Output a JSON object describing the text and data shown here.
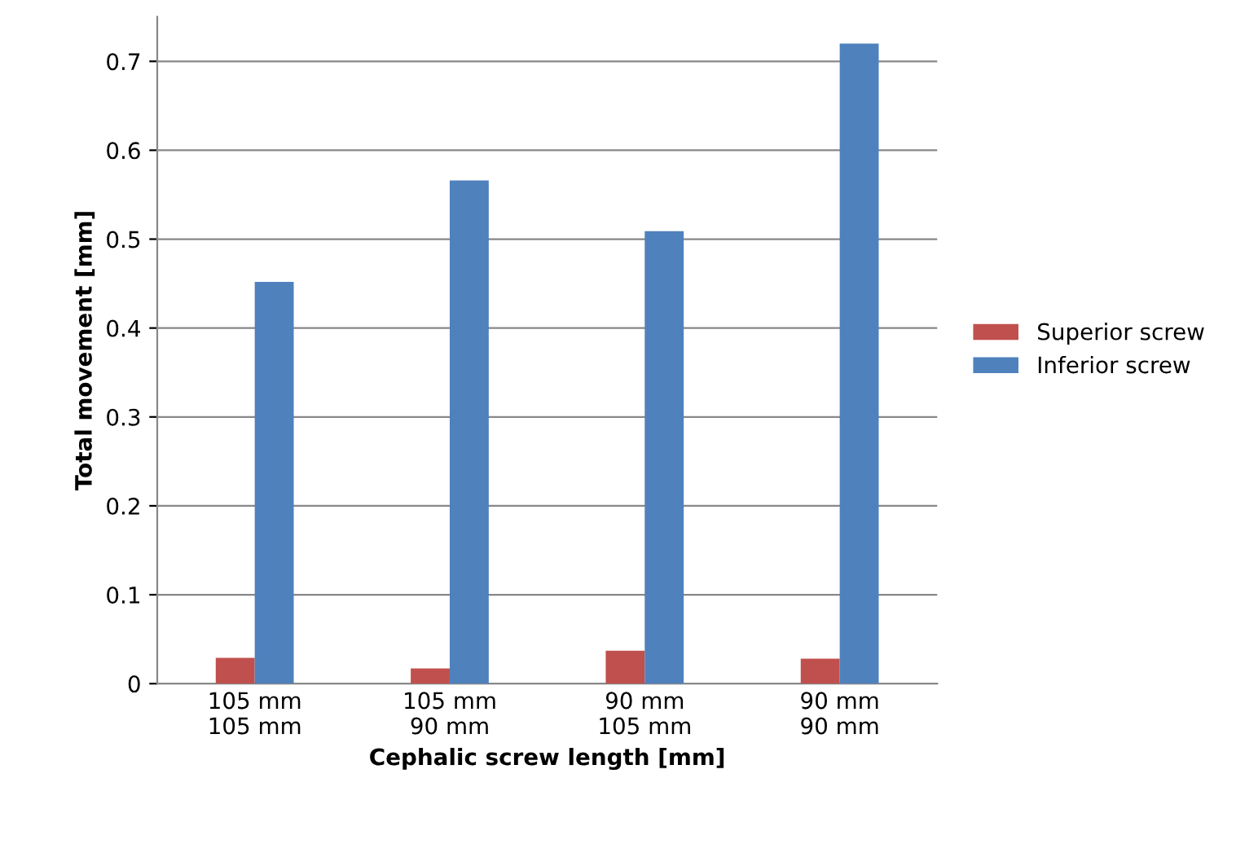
{
  "chart_data": {
    "type": "bar",
    "xlabel": "Cephalic screw length [mm]",
    "ylabel": "Total movement [mm]",
    "categories": [
      "105 mm\n105 mm",
      "105 mm\n90 mm",
      "90 mm\n105 mm",
      "90 mm\n90 mm"
    ],
    "series": [
      {
        "name": "Superior screw",
        "color": "#c0504d",
        "values": [
          0.029,
          0.017,
          0.037,
          0.028
        ]
      },
      {
        "name": "Inferior screw",
        "color": "#4f81bd",
        "values": [
          0.452,
          0.566,
          0.509,
          0.72
        ]
      }
    ],
    "ylim": [
      0,
      0.75
    ],
    "yticks": [
      0,
      {
        "value": 0.1,
        "label": "0.1"
      },
      {
        "value": 0.2,
        "label": "0.2"
      },
      {
        "value": 0.3,
        "label": "0.3"
      },
      {
        "value": 0.4,
        "label": "0.4"
      },
      {
        "value": 0.5,
        "label": "0.5"
      },
      {
        "value": 0.6,
        "label": "0.6"
      },
      {
        "value": 0.7,
        "label": "0.7"
      }
    ],
    "grid": "y",
    "legend": "right"
  }
}
